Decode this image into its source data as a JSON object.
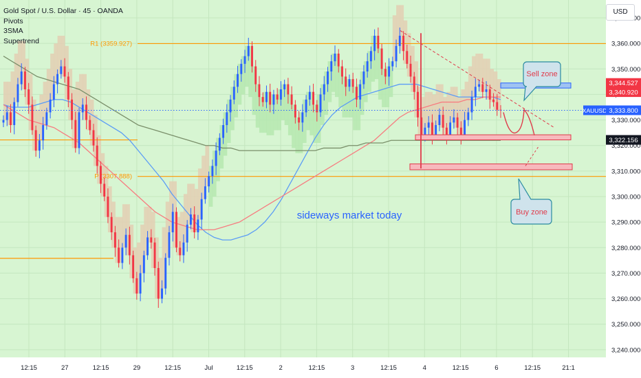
{
  "legend": {
    "title": "Gold Spot / U.S. Dollar · 45 · OANDA",
    "indicators": [
      "Pivots",
      "3SMA",
      "Supertrend"
    ]
  },
  "currency": "USD",
  "colors": {
    "background": "#d7f5d2",
    "bull": "#2962ff",
    "bear": "#f23645",
    "pivot": "#ff9800",
    "sma_fast": "#5b9cf6",
    "sma_mid": "#f77c80",
    "sma_slow": "#7a8f6a",
    "st_up_fill": "#b6e7b0",
    "st_down_fill": "#e3cfb4",
    "annotation": "#2962ff",
    "zone_callout": "#e03a4a"
  },
  "chart_data": {
    "type": "line",
    "title": "Gold Spot / U.S. Dollar · 45 · OANDA",
    "symbol": "XAUUSD",
    "ylim": [
      3237,
      3377
    ],
    "y_ticks": [
      3240,
      3250,
      3260,
      3270,
      3280,
      3290,
      3300,
      3310,
      3320,
      3330,
      3340,
      3350,
      3360,
      3370
    ],
    "x_ticks": [
      "12:15",
      "27",
      "12:15",
      "29",
      "12:15",
      "Jul",
      "12:15",
      "2",
      "12:15",
      "3",
      "12:15",
      "4",
      "12:15",
      "6",
      "12:15",
      "21:1"
    ],
    "grid": true,
    "price_labels": [
      {
        "label": "XAUUSD",
        "value": "3,333.800",
        "color": "#2962ff",
        "y": 3333.8
      },
      {
        "value": "3,344.527",
        "color": "#f23645",
        "y": 3344.5
      },
      {
        "value": "3,340.920",
        "color": "#f23645",
        "y": 3340.9
      },
      {
        "value": "3,322.156",
        "color": "#131722",
        "y": 3322.2
      }
    ],
    "pivots": [
      {
        "label": "R1 (3359.927)",
        "value": 3359.927
      },
      {
        "label": "P (3307.888)",
        "value": 3307.888
      }
    ],
    "extra_levels": [
      3322.2,
      3275.8
    ],
    "closes": [
      3330,
      3333,
      3328,
      3337,
      3344,
      3349,
      3342,
      3336,
      3326,
      3318,
      3322,
      3328,
      3333,
      3338,
      3344,
      3348,
      3351,
      3347,
      3338,
      3330,
      3319,
      3333,
      3336,
      3330,
      3326,
      3320,
      3312,
      3305,
      3300,
      3292,
      3286,
      3280,
      3274,
      3280,
      3285,
      3277,
      3268,
      3262,
      3270,
      3277,
      3284,
      3282,
      3272,
      3260,
      3264,
      3276,
      3286,
      3294,
      3280,
      3277,
      3282,
      3289,
      3293,
      3286,
      3291,
      3299,
      3304,
      3308,
      3312,
      3318,
      3323,
      3328,
      3333,
      3338,
      3343,
      3348,
      3352,
      3355,
      3359,
      3351,
      3344,
      3339,
      3337,
      3341,
      3336,
      3340,
      3338,
      3342,
      3344,
      3340,
      3336,
      3331,
      3329,
      3333,
      3338,
      3341,
      3336,
      3333,
      3340,
      3344,
      3349,
      3353,
      3356,
      3351,
      3347,
      3343,
      3346,
      3343,
      3338,
      3344,
      3349,
      3353,
      3357,
      3363,
      3358,
      3350,
      3347,
      3351,
      3353,
      3359,
      3363,
      3357,
      3352,
      3347,
      3341,
      3331,
      3324,
      3327,
      3329,
      3324,
      3328,
      3332,
      3327,
      3324,
      3329,
      3331,
      3327,
      3324,
      3330,
      3333,
      3339,
      3343,
      3344,
      3341,
      3342,
      3338,
      3337,
      3334,
      3333.8
    ],
    "series": [
      {
        "values": [
          3336,
          3335,
          3335,
          3335,
          3336,
          3337,
          3338,
          3338,
          3337,
          3335,
          3333,
          3331,
          3329,
          3327,
          3325,
          3322,
          3318,
          3314,
          3310,
          3306,
          3301,
          3297,
          3293,
          3289,
          3286,
          3284,
          3283,
          3283,
          3284,
          3285,
          3287,
          3290,
          3294,
          3299,
          3305,
          3311,
          3317,
          3323,
          3328,
          3332,
          3335,
          3337,
          3339,
          3340,
          3341,
          3342,
          3343,
          3344,
          3344,
          3344,
          3343,
          3342,
          3341,
          3340,
          3339,
          3339,
          3339,
          3339,
          3339,
          3338
        ]
      },
      {
        "values": [
          3336,
          3334,
          3332,
          3330,
          3329,
          3328,
          3327,
          3325,
          3323,
          3321,
          3318,
          3315,
          3312,
          3309,
          3306,
          3303,
          3300,
          3297,
          3294,
          3292,
          3290,
          3289,
          3288,
          3287,
          3287,
          3287,
          3288,
          3289,
          3290,
          3292,
          3294,
          3296,
          3298,
          3300,
          3302,
          3304,
          3306,
          3308,
          3310,
          3312,
          3314,
          3316,
          3318,
          3320,
          3322,
          3325,
          3328,
          3331,
          3333,
          3334,
          3335,
          3336,
          3337,
          3337,
          3337,
          3338,
          3338,
          3339,
          3339,
          3339
        ]
      },
      {
        "values": [
          3355,
          3353,
          3351,
          3349,
          3347,
          3346,
          3345,
          3344,
          3343,
          3342,
          3340,
          3338,
          3336,
          3334,
          3332,
          3330,
          3328,
          3327,
          3326,
          3325,
          3324,
          3323,
          3322,
          3321,
          3320,
          3320,
          3319,
          3319,
          3318,
          3318,
          3318,
          3318,
          3318,
          3318,
          3318,
          3318,
          3318,
          3318,
          3319,
          3319,
          3319,
          3320,
          3320,
          3321,
          3321,
          3321,
          3322,
          3322,
          3322,
          3322,
          3322,
          3322,
          3322,
          3322,
          3322,
          3322,
          3322,
          3322,
          3322,
          3322
        ]
      }
    ],
    "zones": [
      {
        "label": "Sell zone",
        "low": 3342.5,
        "high": 3344.5
      },
      {
        "label": "Buy zone (upper)",
        "low": 3322.2,
        "high": 3324.2
      },
      {
        "label": "Buy zone (lower)",
        "low": 3310.5,
        "high": 3312.8
      }
    ],
    "annotations": {
      "main": "sideways market today",
      "sell": "Sell zone",
      "buy": "Buy zone"
    }
  }
}
